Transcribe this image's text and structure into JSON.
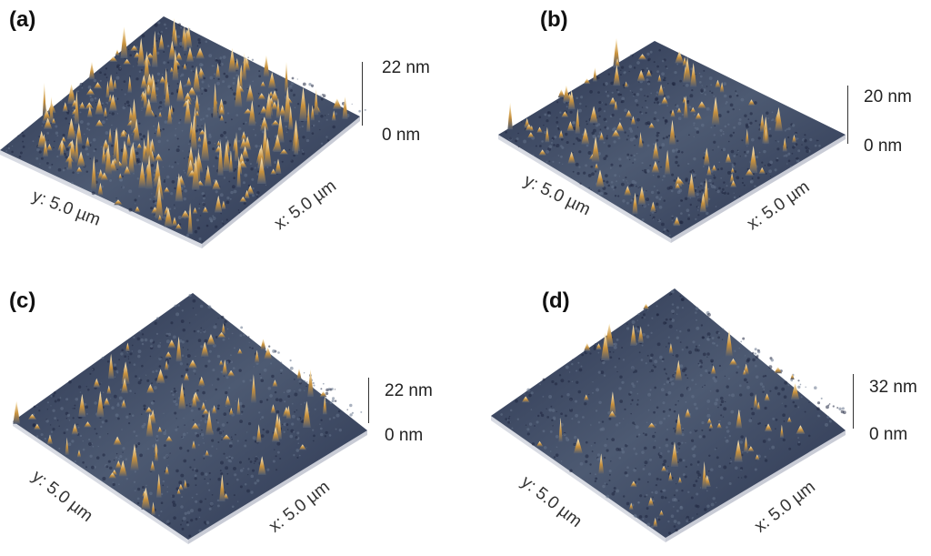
{
  "panels": [
    {
      "id": "a",
      "label": "(a)",
      "z_max": "22 nm",
      "z_min": "0 nm",
      "y_axis": "y: 5.0 µm",
      "x_axis": "x: 5.0 µm",
      "peak_density": "high"
    },
    {
      "id": "b",
      "label": "(b)",
      "z_max": "20 nm",
      "z_min": "0 nm",
      "y_axis": "y: 5.0 µm",
      "x_axis": "x: 5.0 µm",
      "peak_density": "medium"
    },
    {
      "id": "c",
      "label": "(c)",
      "z_max": "22 nm",
      "z_min": "0 nm",
      "y_axis": "y: 5.0 µm",
      "x_axis": "x: 5.0 µm",
      "peak_density": "medium"
    },
    {
      "id": "d",
      "label": "(d)",
      "z_max": "32 nm",
      "z_min": "0 nm",
      "y_axis": "y: 5.0 µm",
      "x_axis": "x: 5.0 µm",
      "peak_density": "low"
    }
  ],
  "colors": {
    "surface_low": "#2b3550",
    "surface_mid": "#4d5a72",
    "peak_mid": "#c8913c",
    "peak_high": "#fff2cf"
  }
}
